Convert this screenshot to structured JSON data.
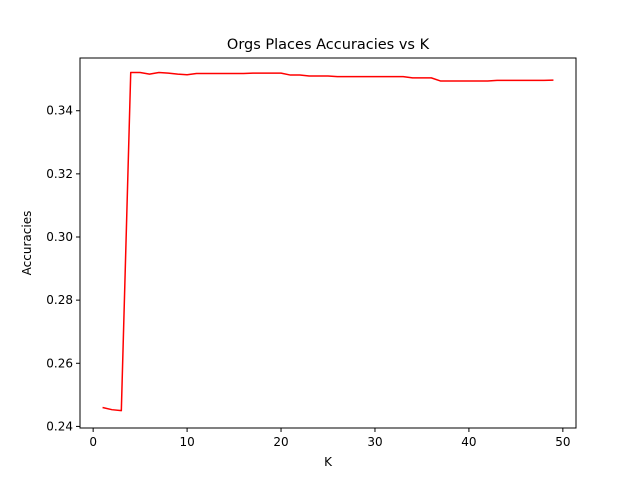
{
  "chart_data": {
    "type": "line",
    "title": "Orgs Places Accuracies vs K",
    "xlabel": "K",
    "ylabel": "Accuracies",
    "xlim": [
      -1.4,
      51.4
    ],
    "ylim": [
      0.2395,
      0.3567
    ],
    "x_ticks": [
      0,
      10,
      20,
      30,
      40,
      50
    ],
    "y_ticks": [
      0.24,
      0.26,
      0.28,
      0.3,
      0.32,
      0.34
    ],
    "x_tick_labels": [
      "0",
      "10",
      "20",
      "30",
      "40",
      "50"
    ],
    "y_tick_labels": [
      "0.24",
      "0.26",
      "0.28",
      "0.30",
      "0.32",
      "0.34"
    ],
    "grid": false,
    "series": [
      {
        "color": "#ff0000",
        "x": [
          1,
          2,
          3,
          4,
          5,
          6,
          7,
          8,
          9,
          10,
          11,
          12,
          13,
          14,
          15,
          16,
          17,
          18,
          19,
          20,
          21,
          22,
          23,
          24,
          25,
          26,
          27,
          28,
          29,
          30,
          31,
          32,
          33,
          34,
          35,
          36,
          37,
          38,
          39,
          40,
          41,
          42,
          43,
          44,
          45,
          46,
          47,
          48,
          49
        ],
        "y": [
          0.246,
          0.2453,
          0.245,
          0.3521,
          0.3521,
          0.3516,
          0.3521,
          0.3519,
          0.3516,
          0.3514,
          0.3518,
          0.3518,
          0.3518,
          0.3518,
          0.3518,
          0.3518,
          0.3519,
          0.3519,
          0.3519,
          0.3519,
          0.3513,
          0.3513,
          0.351,
          0.351,
          0.351,
          0.3508,
          0.3508,
          0.3508,
          0.3508,
          0.3508,
          0.3508,
          0.3508,
          0.3508,
          0.3504,
          0.3504,
          0.3504,
          0.3494,
          0.3494,
          0.3494,
          0.3494,
          0.3494,
          0.3494,
          0.3496,
          0.3496,
          0.3496,
          0.3496,
          0.3496,
          0.3496,
          0.3497
        ]
      }
    ]
  }
}
